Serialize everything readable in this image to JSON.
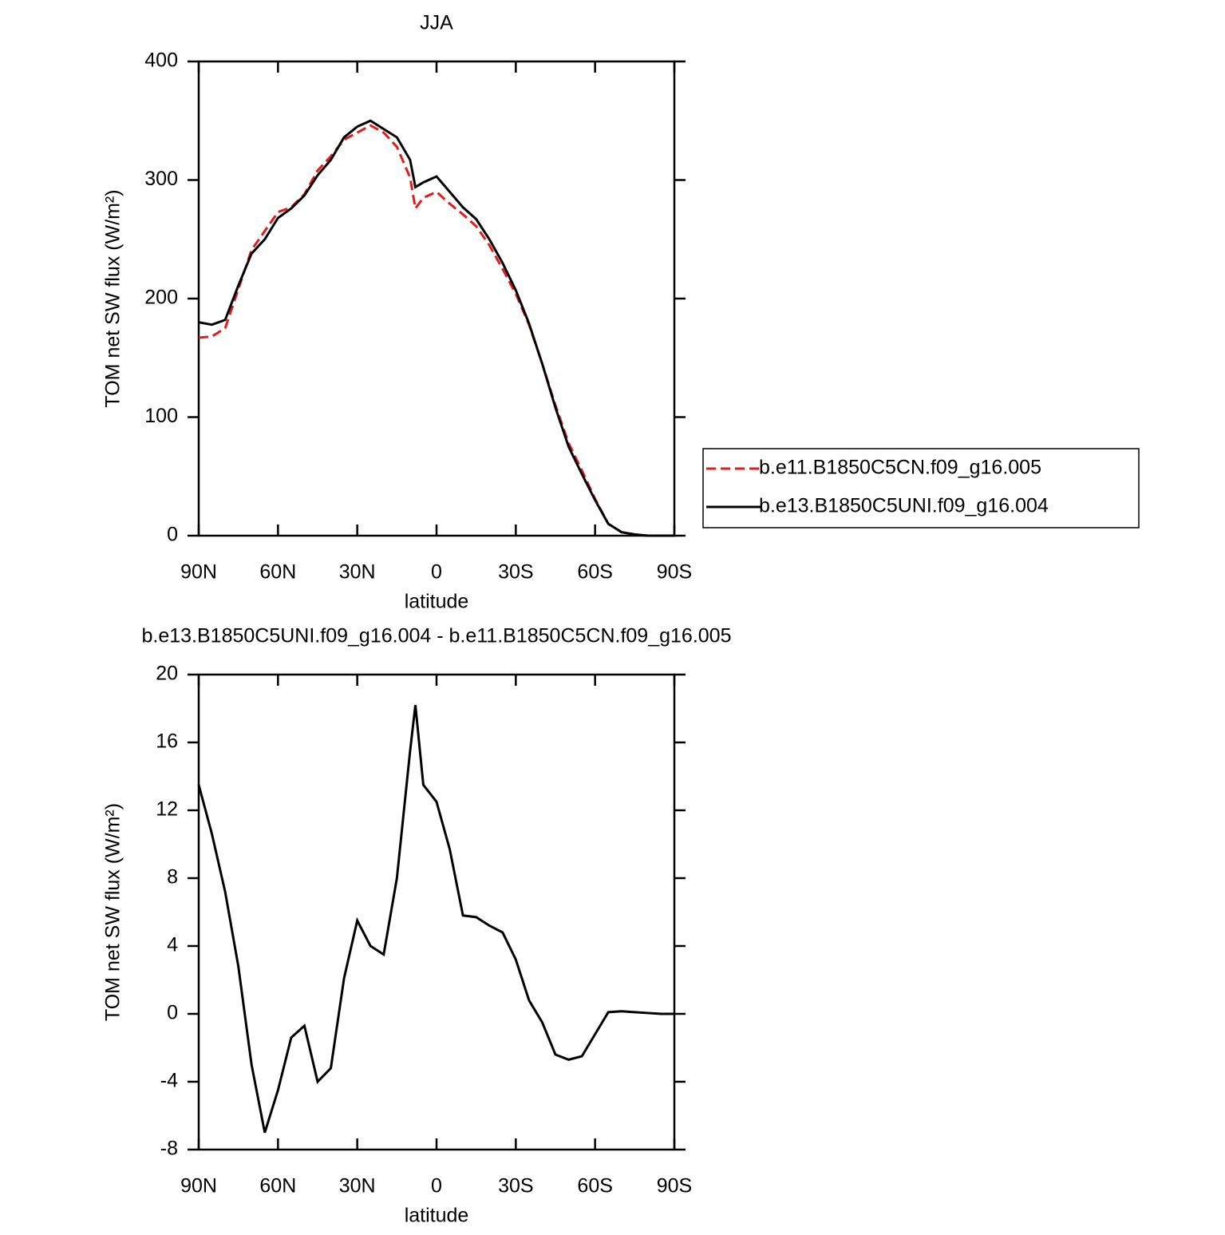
{
  "chart_data": [
    {
      "type": "line",
      "title": "JJA",
      "xlabel": "latitude",
      "ylabel": "TOM net SW flux (W/m²)",
      "x": [
        90,
        85,
        80,
        75,
        70,
        65,
        60,
        55,
        50,
        45,
        40,
        35,
        30,
        25,
        20,
        15,
        10,
        8,
        5,
        0,
        -5,
        -10,
        -15,
        -20,
        -25,
        -30,
        -35,
        -40,
        -45,
        -50,
        -55,
        -60,
        -65,
        -70,
        -75,
        -80,
        -85,
        -90
      ],
      "series": [
        {
          "name": "b.e11.B1850C5CN.f09_g16.005",
          "color": "#e41a1c",
          "line_style": "dashed",
          "values": [
            167,
            168,
            175,
            208,
            241,
            257,
            273,
            277,
            288,
            308,
            320,
            334,
            340,
            346,
            340,
            328,
            302,
            276,
            285,
            290,
            280,
            271,
            261,
            245,
            225,
            204,
            178,
            145,
            110,
            78,
            55,
            31,
            10,
            3,
            1,
            0,
            0,
            0
          ]
        },
        {
          "name": "b.e13.B1850C5UNI.f09_g16.004",
          "color": "#000000",
          "line_style": "solid",
          "values": [
            180,
            178,
            182,
            211,
            238,
            250,
            268,
            276,
            287,
            304,
            317,
            336,
            345,
            350,
            343,
            336,
            317,
            294,
            298,
            303,
            290,
            277,
            267,
            250,
            230,
            207,
            179,
            145,
            108,
            75,
            52,
            30,
            10,
            3,
            1,
            0,
            0,
            0
          ]
        }
      ],
      "xlim": [
        90,
        -90
      ],
      "xticks": [
        {
          "value": 90,
          "label": "90N"
        },
        {
          "value": 60,
          "label": "60N"
        },
        {
          "value": 30,
          "label": "30N"
        },
        0,
        {
          "value": -30,
          "label": "30S"
        },
        {
          "value": -60,
          "label": "60S"
        },
        {
          "value": -90,
          "label": "90S"
        }
      ],
      "ylim": [
        0,
        400
      ],
      "yticks": [
        0,
        100,
        200,
        300,
        400
      ],
      "legend": "right"
    },
    {
      "type": "line",
      "title": "b.e13.B1850C5UNI.f09_g16.004 - b.e11.B1850C5CN.f09_g16.005",
      "xlabel": "latitude",
      "ylabel": "TOM net SW flux (W/m²)",
      "x": [
        90,
        85,
        80,
        75,
        70,
        65,
        60,
        55,
        50,
        45,
        40,
        35,
        30,
        25,
        20,
        15,
        10,
        8,
        5,
        0,
        -5,
        -10,
        -15,
        -20,
        -25,
        -30,
        -35,
        -40,
        -45,
        -50,
        -55,
        -60,
        -65,
        -70,
        -75,
        -80,
        -85,
        -90
      ],
      "series": [
        {
          "color": "#000000",
          "line_style": "solid",
          "values": [
            13.5,
            10.6,
            7.2,
            2.8,
            -3.0,
            -7.0,
            -4.5,
            -1.4,
            -0.7,
            -4.0,
            -3.2,
            2.1,
            5.5,
            4.0,
            3.5,
            8.0,
            15.5,
            18.2,
            13.5,
            12.5,
            9.7,
            5.8,
            5.7,
            5.2,
            4.8,
            3.2,
            0.8,
            -0.5,
            -2.4,
            -2.7,
            -2.5,
            -1.2,
            0.1,
            0.15,
            0.1,
            0.05,
            0,
            0
          ]
        }
      ],
      "xlim": [
        90,
        -90
      ],
      "xticks": [
        {
          "value": 90,
          "label": "90N"
        },
        {
          "value": 60,
          "label": "60N"
        },
        {
          "value": 30,
          "label": "30N"
        },
        0,
        {
          "value": -30,
          "label": "30S"
        },
        {
          "value": -60,
          "label": "60S"
        },
        {
          "value": -90,
          "label": "90S"
        }
      ],
      "ylim": [
        -8,
        20
      ],
      "yticks": [
        -8,
        -4,
        0,
        4,
        8,
        12,
        16,
        20
      ]
    }
  ]
}
